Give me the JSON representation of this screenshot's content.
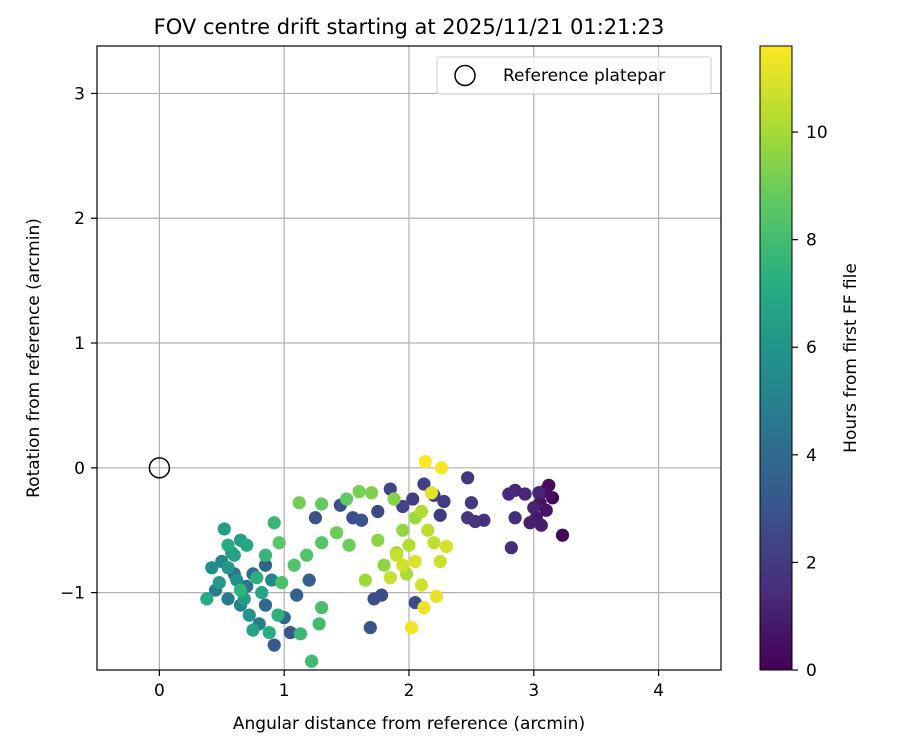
{
  "chart_data": {
    "type": "scatter",
    "title": "FOV centre drift starting at 2025/11/21 01:21:23",
    "xlabel": "Angular distance from reference (arcmin)",
    "ylabel": "Rotation from reference (arcmin)",
    "xlim": [
      -0.5,
      4.5
    ],
    "ylim": [
      -1.62,
      3.38
    ],
    "xticks": [
      0,
      1,
      2,
      3,
      4
    ],
    "yticks": [
      -1,
      0,
      1,
      2,
      3
    ],
    "xtick_labels": [
      "0",
      "1",
      "2",
      "3",
      "4"
    ],
    "ytick_labels": [
      "−1",
      "0",
      "1",
      "2",
      "3"
    ],
    "grid": true,
    "legend": {
      "position": "top-right",
      "label": "Reference platepar"
    },
    "reference_point": {
      "x": 0,
      "y": 0
    },
    "colorbar": {
      "label": "Hours from first FF file",
      "range": [
        0,
        11.6
      ],
      "ticks": [
        0,
        2,
        4,
        6,
        8,
        10
      ],
      "tick_labels": [
        "0",
        "2",
        "4",
        "6",
        "8",
        "10"
      ],
      "colormap": "viridis"
    },
    "series": [
      {
        "name": "FOV centre drift",
        "color_by": "hours",
        "points": [
          [
            3.23,
            -0.54,
            0.2
          ],
          [
            3.15,
            -0.24,
            0.3
          ],
          [
            3.12,
            -0.14,
            0.4
          ],
          [
            3.08,
            -0.19,
            0.5
          ],
          [
            3.05,
            -0.28,
            0.6
          ],
          [
            3.1,
            -0.34,
            0.7
          ],
          [
            3.02,
            -0.4,
            0.8
          ],
          [
            3.06,
            -0.46,
            0.9
          ],
          [
            2.97,
            -0.44,
            1.0
          ],
          [
            3.0,
            -0.32,
            1.1
          ],
          [
            3.04,
            -0.2,
            1.2
          ],
          [
            2.93,
            -0.21,
            1.3
          ],
          [
            2.85,
            -0.18,
            1.3
          ],
          [
            2.8,
            -0.21,
            1.4
          ],
          [
            2.85,
            -0.4,
            1.5
          ],
          [
            2.82,
            -0.64,
            1.5
          ],
          [
            2.6,
            -0.42,
            1.6
          ],
          [
            2.53,
            -0.43,
            1.7
          ],
          [
            2.47,
            -0.4,
            1.8
          ],
          [
            2.5,
            -0.28,
            1.8
          ],
          [
            2.47,
            -0.08,
            1.9
          ],
          [
            2.28,
            -0.27,
            2.0
          ],
          [
            2.25,
            -0.38,
            2.0
          ],
          [
            2.2,
            -0.22,
            2.1
          ],
          [
            2.12,
            -0.13,
            2.2
          ],
          [
            2.03,
            -0.25,
            2.2
          ],
          [
            1.95,
            -0.31,
            2.3
          ],
          [
            1.85,
            -0.17,
            2.4
          ],
          [
            1.75,
            -0.35,
            2.5
          ],
          [
            2.05,
            -1.08,
            2.6
          ],
          [
            1.78,
            -1.02,
            2.6
          ],
          [
            1.72,
            -1.05,
            2.7
          ],
          [
            1.45,
            -0.3,
            2.8
          ],
          [
            1.55,
            -0.4,
            2.8
          ],
          [
            1.62,
            -0.42,
            2.9
          ],
          [
            1.25,
            -0.4,
            3.0
          ],
          [
            1.69,
            -1.28,
            3.1
          ],
          [
            1.05,
            -1.32,
            3.2
          ],
          [
            0.92,
            -1.42,
            3.3
          ],
          [
            1.2,
            -0.9,
            3.5
          ],
          [
            1.1,
            -1.02,
            3.6
          ],
          [
            0.85,
            -0.78,
            3.7
          ],
          [
            1.0,
            -1.2,
            3.8
          ],
          [
            0.85,
            -1.1,
            4.0
          ],
          [
            0.75,
            -0.85,
            4.2
          ],
          [
            0.6,
            -0.85,
            4.3
          ],
          [
            0.7,
            -0.95,
            4.5
          ],
          [
            0.55,
            -1.05,
            4.6
          ],
          [
            0.45,
            -0.98,
            4.8
          ],
          [
            0.8,
            -1.25,
            4.9
          ],
          [
            0.65,
            -1.1,
            5.1
          ],
          [
            0.9,
            -0.9,
            5.3
          ],
          [
            0.5,
            -0.75,
            5.4
          ],
          [
            0.42,
            -0.8,
            5.6
          ],
          [
            0.58,
            -0.68,
            5.7
          ],
          [
            0.62,
            -0.9,
            5.8
          ],
          [
            0.72,
            -1.18,
            6.0
          ],
          [
            0.55,
            -0.8,
            6.1
          ],
          [
            0.48,
            -0.92,
            6.2
          ],
          [
            0.68,
            -1.05,
            6.3
          ],
          [
            0.52,
            -0.49,
            6.4
          ],
          [
            0.65,
            -0.58,
            6.5
          ],
          [
            0.6,
            -0.7,
            6.6
          ],
          [
            0.75,
            -1.3,
            6.7
          ],
          [
            0.82,
            -1.0,
            6.8
          ],
          [
            0.7,
            -0.62,
            6.9
          ],
          [
            0.38,
            -1.05,
            7.0
          ],
          [
            0.55,
            -0.62,
            7.1
          ],
          [
            0.88,
            -1.32,
            7.2
          ],
          [
            0.78,
            -0.88,
            7.3
          ],
          [
            0.95,
            -1.18,
            7.4
          ],
          [
            0.65,
            -0.98,
            7.5
          ],
          [
            0.85,
            -0.7,
            7.6
          ],
          [
            0.92,
            -0.44,
            7.7
          ],
          [
            1.13,
            -1.33,
            7.8
          ],
          [
            1.22,
            -1.55,
            7.9
          ],
          [
            1.28,
            -1.25,
            8.0
          ],
          [
            1.3,
            -1.12,
            8.1
          ],
          [
            0.98,
            -0.92,
            8.2
          ],
          [
            1.08,
            -0.78,
            8.3
          ],
          [
            1.18,
            -0.7,
            8.4
          ],
          [
            1.3,
            -0.6,
            8.5
          ],
          [
            0.96,
            -0.6,
            8.6
          ],
          [
            1.5,
            -0.25,
            8.7
          ],
          [
            1.3,
            -0.29,
            8.8
          ],
          [
            1.42,
            -0.52,
            8.9
          ],
          [
            1.52,
            -0.62,
            9.0
          ],
          [
            1.12,
            -0.28,
            9.1
          ],
          [
            1.6,
            -0.19,
            9.2
          ],
          [
            1.7,
            -0.2,
            9.3
          ],
          [
            1.88,
            -0.25,
            9.4
          ],
          [
            1.75,
            -0.58,
            9.5
          ],
          [
            1.8,
            -0.78,
            9.6
          ],
          [
            1.95,
            -0.5,
            9.7
          ],
          [
            2.05,
            -0.4,
            9.8
          ],
          [
            1.65,
            -0.9,
            9.9
          ],
          [
            1.9,
            -0.68,
            10.0
          ],
          [
            1.98,
            -0.85,
            10.1
          ],
          [
            2.1,
            -0.35,
            10.2
          ],
          [
            2.0,
            -0.62,
            10.3
          ],
          [
            2.15,
            -0.5,
            10.4
          ],
          [
            2.2,
            -0.6,
            10.5
          ],
          [
            1.85,
            -0.88,
            10.6
          ],
          [
            2.25,
            -0.75,
            10.7
          ],
          [
            2.1,
            -0.94,
            10.8
          ],
          [
            2.3,
            -0.63,
            10.9
          ],
          [
            2.05,
            -0.75,
            11.0
          ],
          [
            2.18,
            -0.2,
            11.1
          ],
          [
            2.22,
            -1.03,
            11.2
          ],
          [
            2.12,
            -1.12,
            11.3
          ],
          [
            2.02,
            -1.28,
            11.4
          ],
          [
            2.26,
            0.0,
            11.5
          ],
          [
            2.13,
            0.05,
            11.6
          ],
          [
            1.9,
            -0.7,
            10.6
          ],
          [
            1.95,
            -0.78,
            10.8
          ]
        ]
      }
    ]
  }
}
